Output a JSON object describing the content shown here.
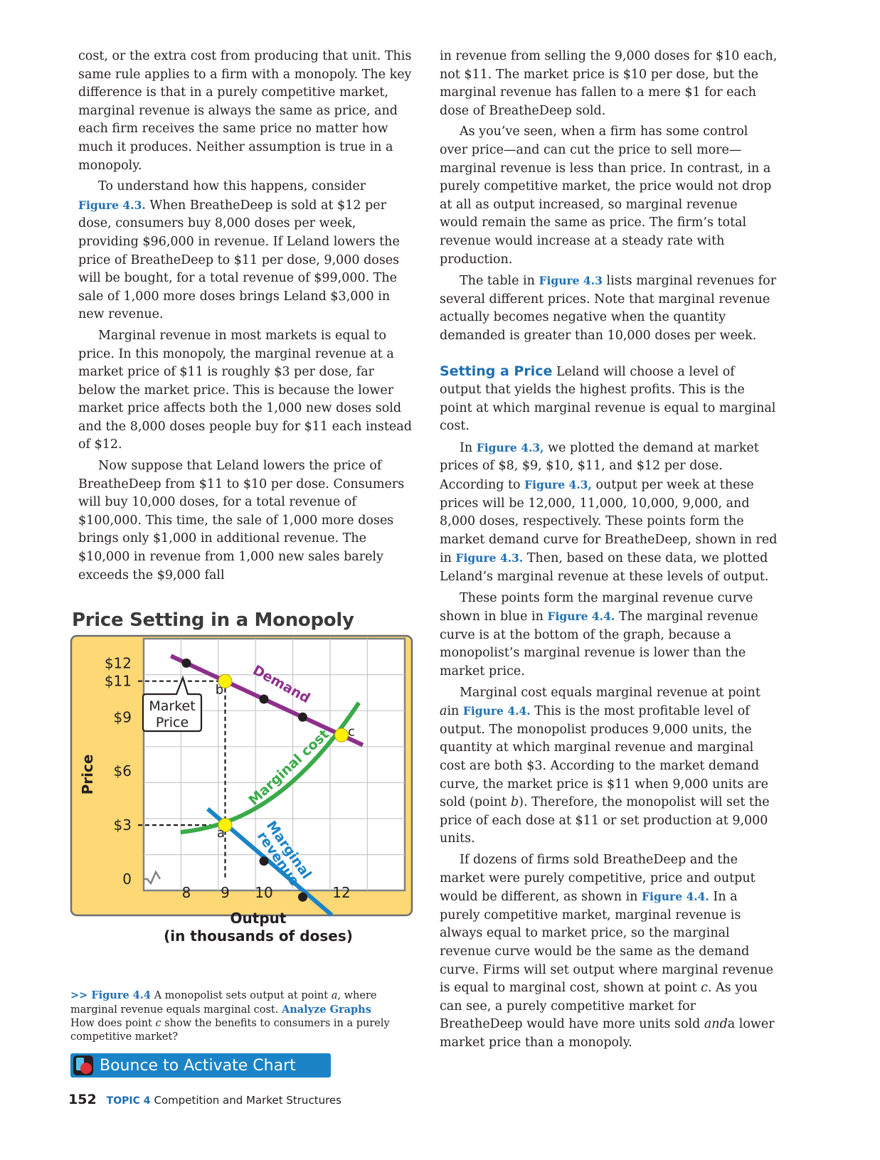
{
  "left_column": {
    "p1": "cost, or the extra cost from producing that unit. This same rule applies to a firm with a monopoly. The key difference is that in a purely competitive market, marginal revenue is always the same as price, and each firm receives the same price no matter how much it produces. Neither assumption is true in a monopoly.",
    "p2_pre": "To understand how this happens, consider",
    "p2_ref": "Figure 4.3.",
    "p2_post": "When BreatheDeep is sold at $12 per dose, consumers buy 8,000 doses per week, providing $96,000 in revenue. If Leland lowers the price of BreatheDeep to $11 per dose, 9,000 doses will be bought, for a total revenue of $99,000. The sale of 1,000 more doses brings Leland $3,000 in new revenue.",
    "p3": "Marginal revenue in most markets is equal to price. In this monopoly, the marginal revenue at a market price of $11 is roughly $3 per dose, far below the market price. This is because the lower market price affects both the 1,000 new doses sold and the 8,000 doses people buy for $11 each instead of $12.",
    "p4": "Now suppose that Leland lowers the price of BreatheDeep from $11 to $10 per dose. Consumers will buy 10,000 doses, for a total revenue of $100,000. This time, the sale of 1,000 more doses brings only $1,000 in additional revenue. The $10,000 in revenue from 1,000 new sales barely exceeds the $9,000 fall"
  },
  "right_column": {
    "p1": "in revenue from selling the 9,000 doses for $10 each, not $11. The market price is $10 per dose, but the marginal revenue has fallen to a mere $1 for each dose of BreatheDeep sold.",
    "p2": "As you’ve seen, when a firm has some control over price—and can cut the price to sell more—marginal revenue is less than price. In contrast, in a purely competitive market, the price would not drop at all as output increased, so marginal revenue would remain the same as price. The firm’s total revenue would increase at a steady rate with production.",
    "p3_pre": "The table in",
    "p3_ref": "Figure 4.3",
    "p3_post": "lists marginal revenues for several different prices. Note that marginal revenue actually becomes negative when the quantity demanded is greater than 10,000 doses per week.",
    "p4_head": "Setting a Price",
    "p4_post": "Leland will choose a level of output that yields the highest profits. This is the point at which marginal revenue is equal to marginal cost.",
    "p5_pre": "In",
    "p5_ref1": "Figure 4.3,",
    "p5_mid1": "we plotted the demand at market prices of $8, $9, $10, $11, and $12 per dose. According to",
    "p5_ref2": "Figure 4.3,",
    "p5_mid2": "output per week at these prices will be 12,000, 11,000, 10,000, 9,000, and 8,000 doses, respectively. These points form the market demand curve for BreatheDeep, shown in red in",
    "p5_ref3": "Figure 4.3.",
    "p5_post": "Then, based on these data, we plotted Leland’s marginal revenue at these levels of output.",
    "p6_pre": "These points form the marginal revenue curve shown in blue in",
    "p6_ref": "Figure 4.4.",
    "p6_post": "The marginal revenue curve is at the bottom of the graph, because a monopolist’s marginal revenue is lower than the market price.",
    "p7_pre": "Marginal cost equals marginal revenue at point",
    "p7_ital": "a",
    "p7_mid": "in",
    "p7_ref": "Figure 4.4.",
    "p7_post": "This is the most profitable level of output. The monopolist produces 9,000 units, the quantity at which marginal revenue and marginal cost are both $3. According to the market demand curve, the market price is $11 when 9,000 units are sold (point",
    "p7_ital2": "b",
    "p7_end": "). Therefore, the monopolist will set the price of each dose at $11 or set production at 9,000 units.",
    "p8_pre": "If dozens of firms sold BreatheDeep and the market were purely competitive, price and output would be different, as shown in",
    "p8_ref": "Figure 4.4.",
    "p8_mid": "In a purely competitive market, marginal revenue is always equal to market price, so the marginal revenue curve would be the same as the demand curve. Firms will set output where marginal revenue is equal to marginal cost, shown at point",
    "p8_ital": "c.",
    "p8_mid2": "As you can see, a purely competitive market for BreatheDeep would have more units sold",
    "p8_ital2": "and",
    "p8_end": "a lower market price than a monopoly."
  },
  "chart_title": "Price Setting in a Monopoly",
  "chart_data": {
    "type": "line",
    "title": "Price Setting in a Monopoly",
    "xlabel": "Output (in thousands of doses)",
    "ylabel": "Price",
    "xlabel_line1": "Output",
    "xlabel_line2": "(in thousands of doses)",
    "x_ticks": [
      "8",
      "9",
      "10",
      "12"
    ],
    "y_ticks": [
      {
        "label": "$12",
        "value": 12
      },
      {
        "label": "$11",
        "value": 11
      },
      {
        "label": "$9",
        "value": 9
      },
      {
        "label": "$6",
        "value": 6
      },
      {
        "label": "$3",
        "value": 3
      },
      {
        "label": "0",
        "value": 0
      }
    ],
    "xlim": [
      7,
      13.5
    ],
    "ylim": [
      0,
      12.5
    ],
    "grid": true,
    "series": [
      {
        "name": "Demand",
        "color": "#8e2f8c",
        "points": [
          [
            8,
            12
          ],
          [
            9,
            11
          ],
          [
            10,
            10
          ],
          [
            11,
            9
          ],
          [
            12,
            8
          ]
        ]
      },
      {
        "name": "Marginal cost",
        "color": "#3aaa49",
        "points": [
          [
            8,
            2.6
          ],
          [
            9,
            3
          ],
          [
            10,
            4.2
          ],
          [
            11,
            5.8
          ],
          [
            12,
            8
          ]
        ]
      },
      {
        "name": "Marginal revenue",
        "color": "#1a84c7",
        "points": [
          [
            9,
            3
          ],
          [
            10,
            1
          ],
          [
            11,
            -1
          ]
        ]
      }
    ],
    "labeled_points": [
      {
        "label": "a",
        "x": 9,
        "y": 3
      },
      {
        "label": "b",
        "x": 9,
        "y": 11
      },
      {
        "label": "c",
        "x": 12,
        "y": 8
      }
    ],
    "callout": "Market Price",
    "callout_line1": "Market",
    "callout_line2": "Price",
    "curve_label_demand": "Demand",
    "curve_label_mc": "Marginal cost",
    "curve_label_mr1": "Marginal",
    "curve_label_mr2": "revenue"
  },
  "caption": {
    "lead": ">> Figure 4.4",
    "text": "A monopolist sets output at point",
    "ital_a": "a,",
    "text2": "where marginal revenue equals marginal cost.",
    "analyze": "Analyze Graphs",
    "question_pre": "How does point",
    "ital_c": "c",
    "question_post": "show the benefits to consumers in a purely competitive market?"
  },
  "bounce_button": "Bounce to Activate Chart",
  "footer": {
    "page_number": "152",
    "topic": "TOPIC 4",
    "topic_title": "Competition and Market Structures"
  },
  "colors": {
    "accent_blue": "#1f6fb2",
    "chart_bg": "#fdd874",
    "demand": "#8e2f8c",
    "marginal_cost": "#3aaa49",
    "marginal_revenue": "#1a84c7",
    "point_yellow": "#fff200"
  }
}
